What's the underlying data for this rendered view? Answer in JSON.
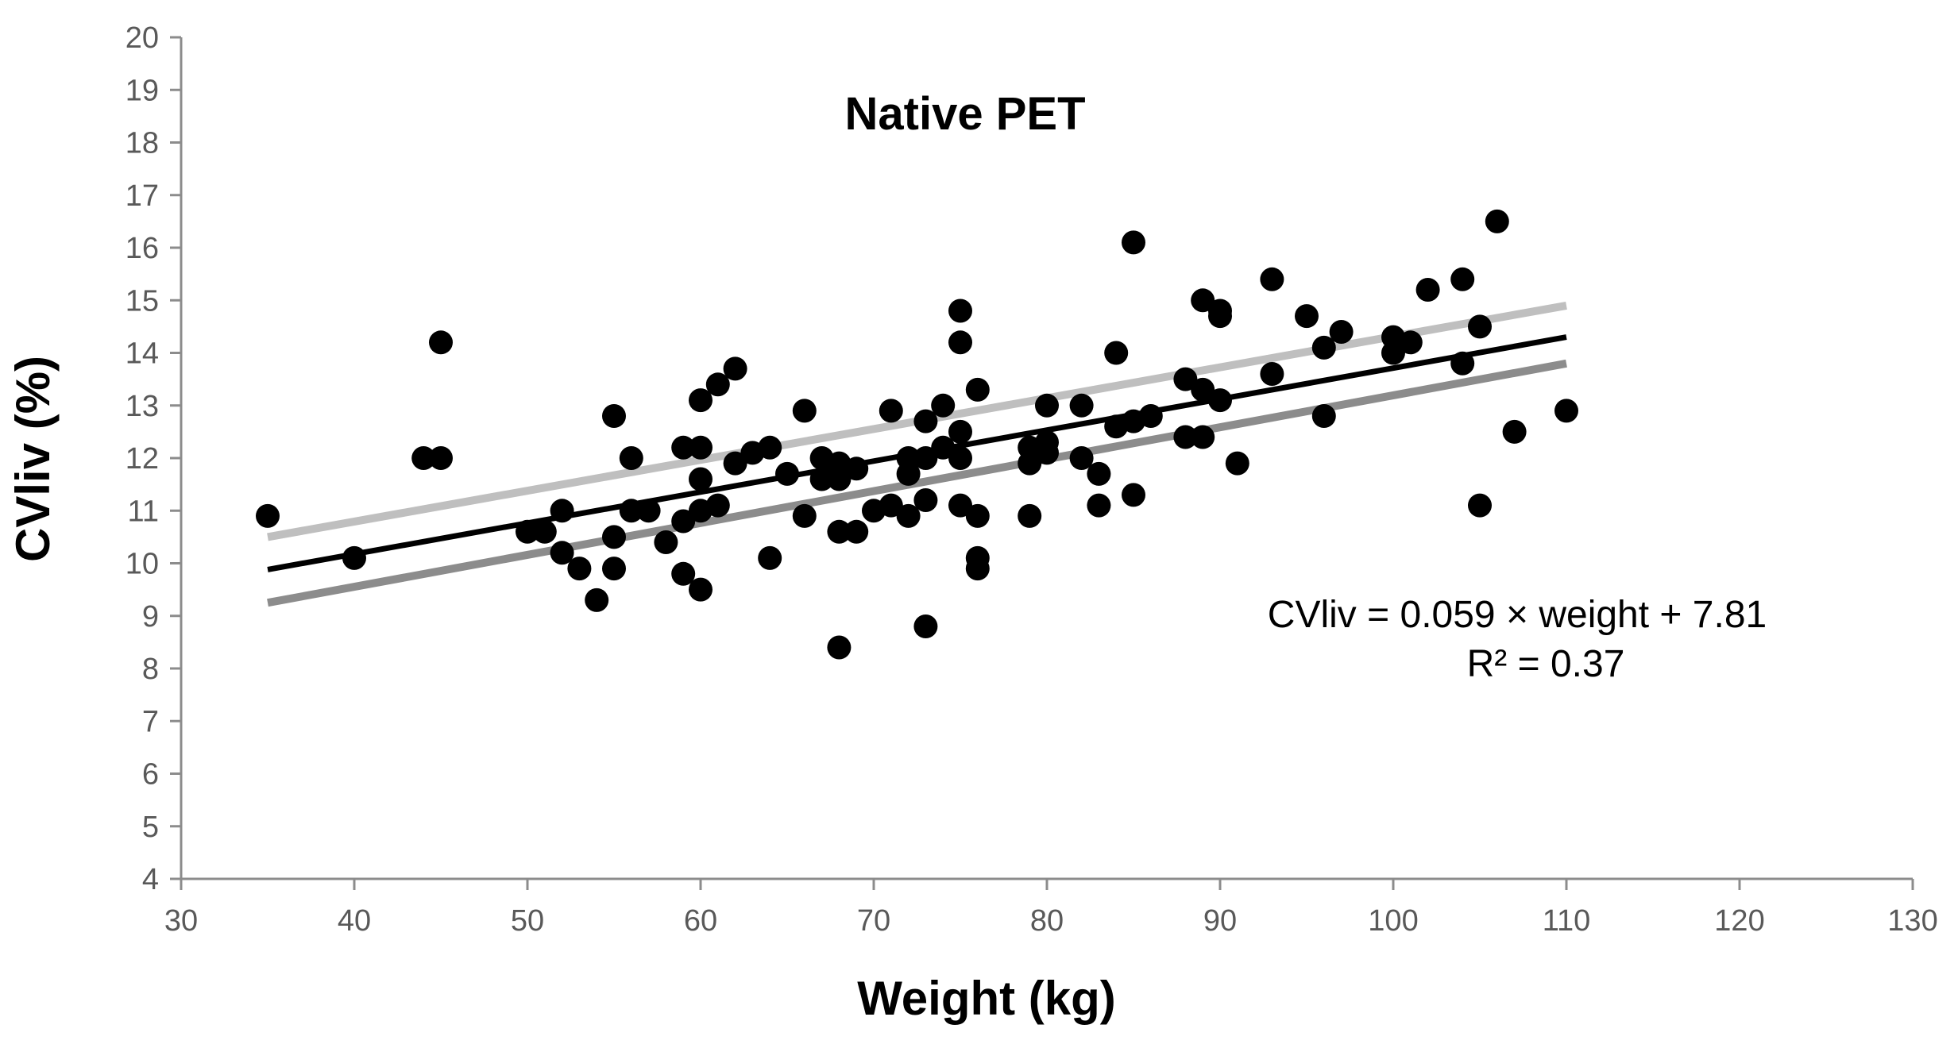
{
  "chart_data": {
    "type": "scatter",
    "title": "Native PET",
    "xlabel": "Weight (kg)",
    "ylabel": "CVliv (%)",
    "xlim": [
      30,
      130
    ],
    "ylim": [
      4,
      20
    ],
    "xticks": [
      30,
      40,
      50,
      60,
      70,
      80,
      90,
      100,
      110,
      120,
      130
    ],
    "yticks": [
      4,
      5,
      6,
      7,
      8,
      9,
      10,
      11,
      12,
      13,
      14,
      15,
      16,
      17,
      18,
      19,
      20
    ],
    "grid": false,
    "annotations": {
      "equation": "CVliv = 0.059 × weight + 7.81",
      "r_squared": "R² = 0.37"
    },
    "colors": {
      "points": "#000000",
      "fit_line": "#000000",
      "upper_band": "#bfbfbf",
      "lower_band": "#8c8c8c",
      "axis": "#8c8c8c"
    },
    "series": [
      {
        "name": "Patients",
        "kind": "points",
        "points": [
          [
            35,
            10.9
          ],
          [
            40,
            10.1
          ],
          [
            44,
            12.0
          ],
          [
            45,
            12.0
          ],
          [
            45,
            14.2
          ],
          [
            50,
            10.6
          ],
          [
            51,
            10.6
          ],
          [
            52,
            11.0
          ],
          [
            52,
            10.2
          ],
          [
            53,
            9.9
          ],
          [
            54,
            9.3
          ],
          [
            55,
            12.8
          ],
          [
            55,
            10.5
          ],
          [
            55,
            9.9
          ],
          [
            56,
            12.0
          ],
          [
            56,
            11.0
          ],
          [
            57,
            11.0
          ],
          [
            58,
            10.4
          ],
          [
            59,
            12.2
          ],
          [
            59,
            10.8
          ],
          [
            59,
            9.8
          ],
          [
            60,
            13.1
          ],
          [
            60,
            12.2
          ],
          [
            60,
            11.6
          ],
          [
            60,
            11.0
          ],
          [
            60,
            9.5
          ],
          [
            61,
            13.4
          ],
          [
            61,
            11.1
          ],
          [
            62,
            13.7
          ],
          [
            62,
            11.9
          ],
          [
            63,
            12.1
          ],
          [
            64,
            12.2
          ],
          [
            64,
            10.1
          ],
          [
            65,
            11.7
          ],
          [
            66,
            12.9
          ],
          [
            66,
            10.9
          ],
          [
            67,
            12.0
          ],
          [
            67,
            11.6
          ],
          [
            68,
            11.9
          ],
          [
            68,
            11.6
          ],
          [
            68,
            10.6
          ],
          [
            68,
            8.4
          ],
          [
            69,
            11.8
          ],
          [
            69,
            10.6
          ],
          [
            70,
            11.0
          ],
          [
            71,
            12.9
          ],
          [
            71,
            11.1
          ],
          [
            72,
            12.0
          ],
          [
            72,
            11.7
          ],
          [
            72,
            10.9
          ],
          [
            73,
            12.7
          ],
          [
            73,
            12.0
          ],
          [
            73,
            11.2
          ],
          [
            73,
            8.8
          ],
          [
            74,
            13.0
          ],
          [
            74,
            12.2
          ],
          [
            75,
            14.8
          ],
          [
            75,
            14.2
          ],
          [
            75,
            12.5
          ],
          [
            75,
            12.0
          ],
          [
            75,
            11.1
          ],
          [
            76,
            13.3
          ],
          [
            76,
            10.9
          ],
          [
            76,
            10.1
          ],
          [
            76,
            9.9
          ],
          [
            79,
            12.2
          ],
          [
            79,
            11.9
          ],
          [
            79,
            10.9
          ],
          [
            80,
            13.0
          ],
          [
            80,
            12.3
          ],
          [
            80,
            12.1
          ],
          [
            82,
            13.0
          ],
          [
            82,
            12.0
          ],
          [
            83,
            11.7
          ],
          [
            83,
            11.1
          ],
          [
            84,
            14.0
          ],
          [
            84,
            12.6
          ],
          [
            85,
            16.1
          ],
          [
            85,
            12.7
          ],
          [
            85,
            11.3
          ],
          [
            86,
            12.8
          ],
          [
            88,
            13.5
          ],
          [
            88,
            12.4
          ],
          [
            89,
            15.0
          ],
          [
            89,
            13.3
          ],
          [
            89,
            12.4
          ],
          [
            90,
            14.8
          ],
          [
            90,
            14.7
          ],
          [
            90,
            13.1
          ],
          [
            91,
            11.9
          ],
          [
            93,
            15.4
          ],
          [
            93,
            13.6
          ],
          [
            95,
            14.7
          ],
          [
            96,
            14.1
          ],
          [
            96,
            12.8
          ],
          [
            97,
            14.4
          ],
          [
            100,
            14.3
          ],
          [
            100,
            14.0
          ],
          [
            101,
            14.2
          ],
          [
            102,
            15.2
          ],
          [
            104,
            15.4
          ],
          [
            104,
            13.8
          ],
          [
            105,
            14.5
          ],
          [
            105,
            11.1
          ],
          [
            106,
            16.5
          ],
          [
            107,
            12.5
          ],
          [
            110,
            12.9
          ]
        ]
      },
      {
        "name": "Regression fit",
        "kind": "line",
        "points": [
          [
            35,
            9.88
          ],
          [
            110,
            14.3
          ]
        ]
      },
      {
        "name": "Upper limit",
        "kind": "line",
        "points": [
          [
            35,
            10.5
          ],
          [
            110,
            14.9
          ]
        ]
      },
      {
        "name": "Lower limit",
        "kind": "line",
        "points": [
          [
            35,
            9.25
          ],
          [
            110,
            13.8
          ]
        ]
      }
    ]
  }
}
